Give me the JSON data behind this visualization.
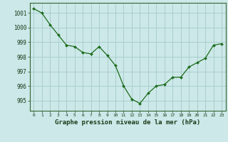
{
  "x": [
    0,
    1,
    2,
    3,
    4,
    5,
    6,
    7,
    8,
    9,
    10,
    11,
    12,
    13,
    14,
    15,
    16,
    17,
    18,
    19,
    20,
    21,
    22,
    23
  ],
  "y": [
    1001.3,
    1001.0,
    1000.2,
    999.5,
    998.8,
    998.7,
    998.3,
    998.2,
    998.7,
    998.1,
    997.4,
    996.0,
    995.1,
    994.8,
    995.5,
    996.0,
    996.1,
    996.6,
    996.6,
    997.3,
    997.6,
    997.9,
    998.8,
    998.9
  ],
  "line_color": "#1a6b1a",
  "marker_color": "#1a6b1a",
  "bg_color": "#cce8e8",
  "grid_color": "#aacece",
  "border_color": "#336633",
  "xlabel": "Graphe pression niveau de la mer (hPa)",
  "xlabel_color": "#1a3a1a",
  "ylabel_ticks": [
    995,
    996,
    997,
    998,
    999,
    1000,
    1001
  ],
  "xlim": [
    -0.5,
    23.5
  ],
  "ylim": [
    994.3,
    1001.7
  ],
  "tick_label_color": "#1a3a1a"
}
